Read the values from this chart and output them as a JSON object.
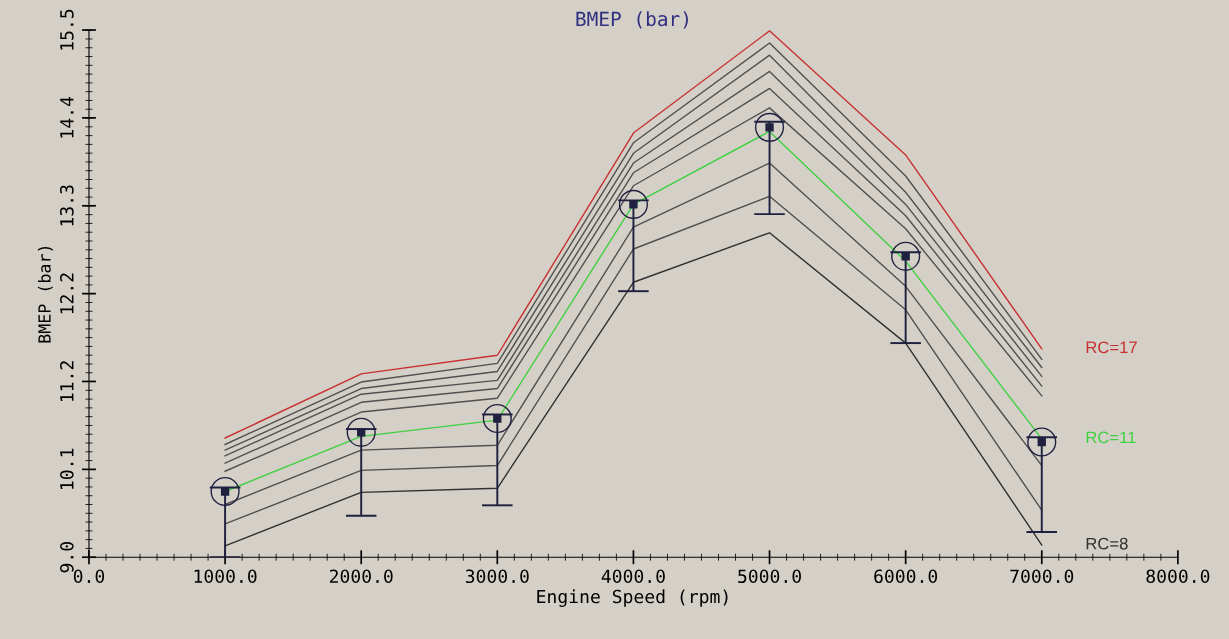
{
  "chart_data": {
    "type": "line",
    "title": "BMEP (bar)",
    "xlabel": "Engine Speed (rpm)",
    "ylabel": "BMEP (bar)",
    "x": [
      1000,
      2000,
      3000,
      4000,
      5000,
      6000,
      7000
    ],
    "xlim": [
      0,
      8000
    ],
    "xticks": [
      {
        "value": 0,
        "label": "0.0"
      },
      {
        "value": 1000,
        "label": "1000.0"
      },
      {
        "value": 2000,
        "label": "2000.0"
      },
      {
        "value": 3000,
        "label": "3000.0"
      },
      {
        "value": 4000,
        "label": "4000.0"
      },
      {
        "value": 5000,
        "label": "5000.0"
      },
      {
        "value": 6000,
        "label": "6000.0"
      },
      {
        "value": 7000,
        "label": "7000.0"
      },
      {
        "value": 8000,
        "label": "8000.0"
      }
    ],
    "ylim": [
      9.0,
      15.5
    ],
    "yticks": [
      {
        "value": 9.0,
        "label": "9.0"
      },
      {
        "value": 10.083,
        "label": "10.1"
      },
      {
        "value": 11.167,
        "label": "11.2"
      },
      {
        "value": 12.25,
        "label": "12.2"
      },
      {
        "value": 13.333,
        "label": "13.3"
      },
      {
        "value": 14.417,
        "label": "14.4"
      },
      {
        "value": 15.5,
        "label": "15.5"
      }
    ],
    "grid": false,
    "legend": false,
    "series": [
      {
        "name": "RC=8",
        "color": "#303030",
        "values": [
          9.14,
          9.8,
          9.85,
          12.39,
          13.0,
          11.64,
          9.15
        ]
      },
      {
        "color": "#505050",
        "values": [
          9.41,
          10.07,
          10.13,
          12.8,
          13.45,
          12.05,
          9.58
        ]
      },
      {
        "color": "#505050",
        "values": [
          9.65,
          10.32,
          10.38,
          13.07,
          13.86,
          12.34,
          10.13
        ]
      },
      {
        "name": "RC=11",
        "color": "#40d040",
        "values": [
          9.81,
          10.49,
          10.69,
          13.35,
          14.25,
          12.65,
          10.46
        ]
      },
      {
        "type": "scatter",
        "color": "#202040",
        "values": [
          9.81,
          10.54,
          10.71,
          13.35,
          14.3,
          12.71,
          10.42
        ],
        "marker": "square",
        "errors": [
          [
            9.0,
            9.86
          ],
          [
            9.51,
            10.58
          ],
          [
            9.64,
            10.76
          ],
          [
            12.28,
            13.4
          ],
          [
            13.23,
            14.37
          ],
          [
            11.64,
            12.76
          ],
          [
            9.31,
            10.48
          ]
        ]
      },
      {
        "color": "#505050",
        "values": [
          10.06,
          10.79,
          10.96,
          13.58,
          14.54,
          13.05,
          10.99
        ]
      },
      {
        "color": "#505050",
        "values": [
          10.16,
          10.91,
          11.08,
          13.74,
          14.78,
          13.21,
          11.11
        ]
      },
      {
        "color": "#505050",
        "values": [
          10.25,
          11.01,
          11.18,
          13.86,
          14.99,
          13.35,
          11.23
        ]
      },
      {
        "color": "#505050",
        "values": [
          10.32,
          11.08,
          11.29,
          13.98,
          15.19,
          13.5,
          11.34
        ]
      },
      {
        "color": "#505050",
        "values": [
          10.39,
          11.16,
          11.39,
          14.11,
          15.34,
          13.7,
          11.44
        ]
      },
      {
        "name": "RC=17",
        "color": "#c83030",
        "values": [
          10.47,
          11.26,
          11.49,
          14.23,
          15.49,
          13.96,
          11.57
        ]
      }
    ]
  }
}
